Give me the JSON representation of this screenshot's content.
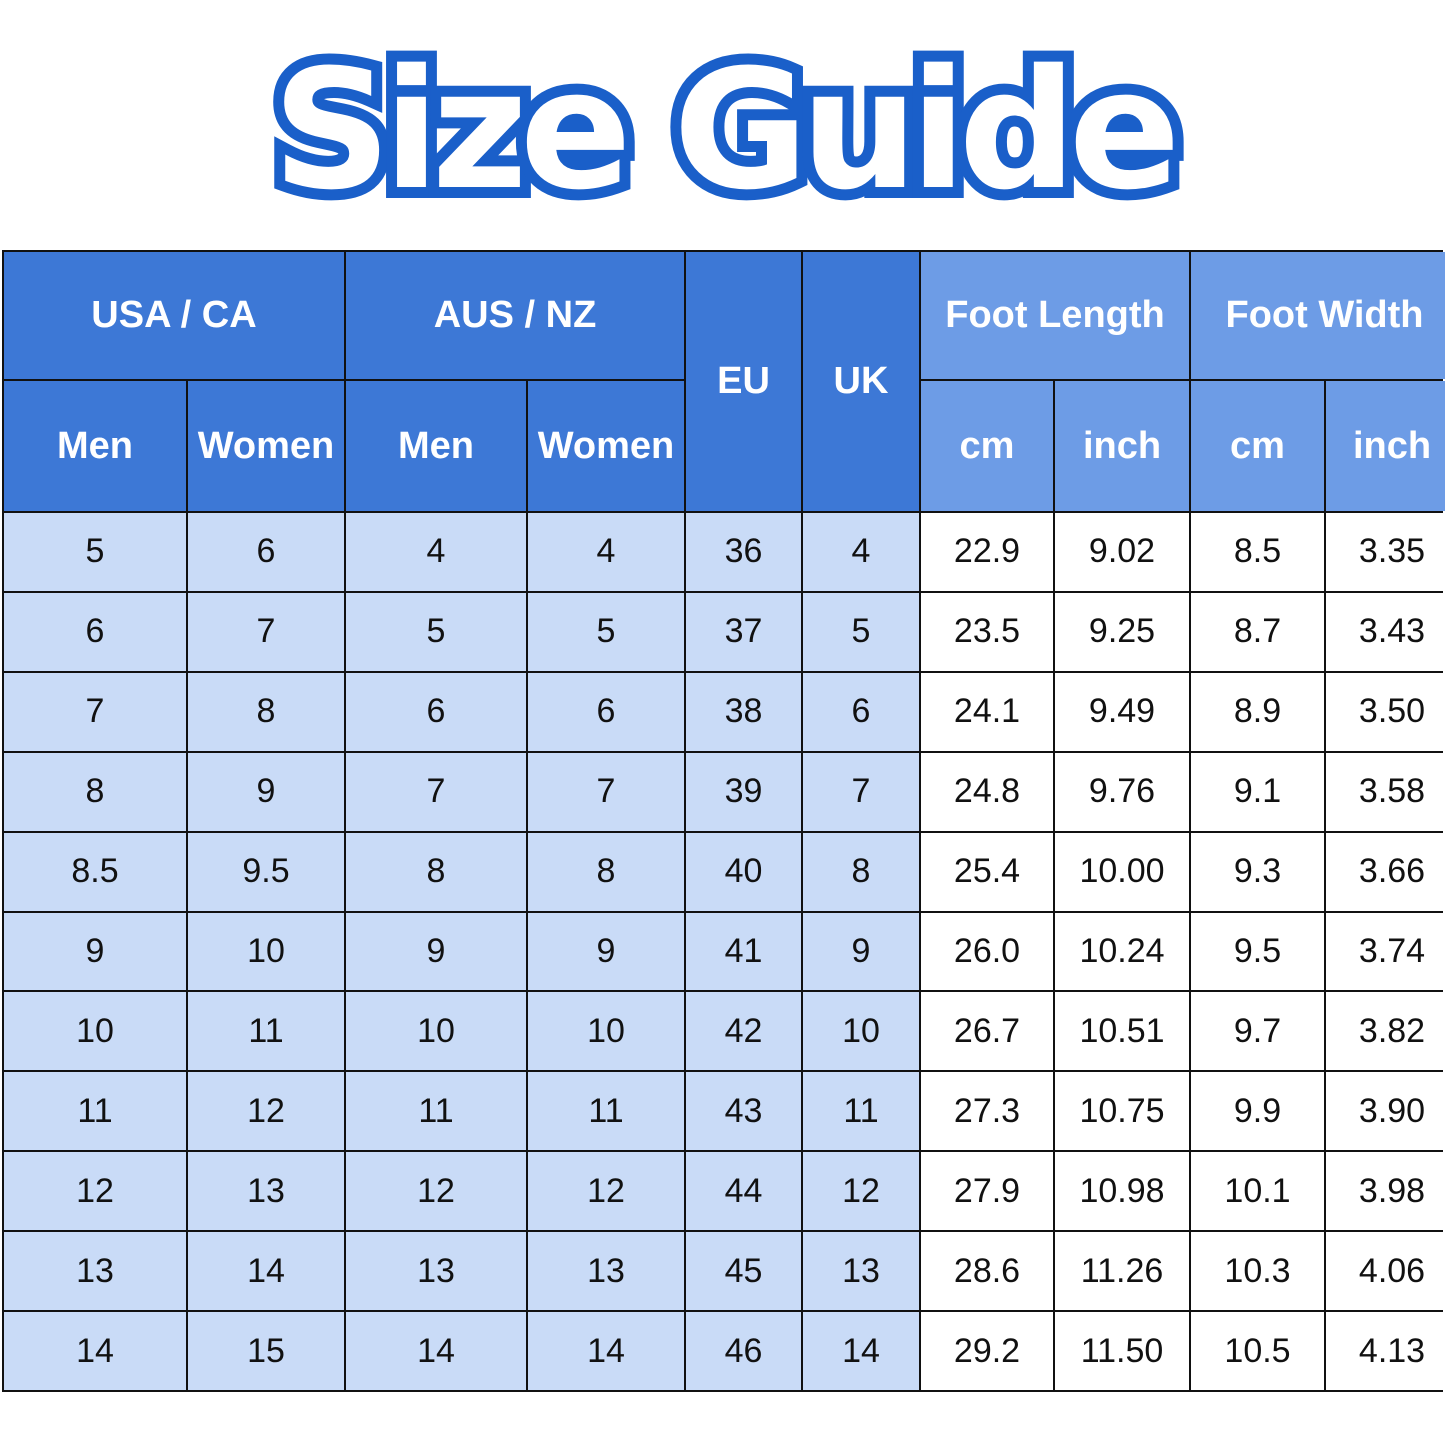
{
  "title": "Size Guide",
  "colors": {
    "header_dark": "#3d78d6",
    "header_light": "#6d9ce6",
    "body_blue": "#c9dbf7",
    "title_outline": "#1a5fc9"
  },
  "headers": {
    "usa_ca": "USA / CA",
    "aus_nz": "AUS / NZ",
    "eu": "EU",
    "uk": "UK",
    "foot_length": "Foot Length",
    "foot_width": "Foot Width",
    "sub": [
      "Men",
      "Women",
      "Men",
      "Women",
      "cm",
      "inch",
      "cm",
      "inch"
    ]
  },
  "rows": [
    [
      "5",
      "6",
      "4",
      "4",
      "36",
      "4",
      "22.9",
      "9.02",
      "8.5",
      "3.35"
    ],
    [
      "6",
      "7",
      "5",
      "5",
      "37",
      "5",
      "23.5",
      "9.25",
      "8.7",
      "3.43"
    ],
    [
      "7",
      "8",
      "6",
      "6",
      "38",
      "6",
      "24.1",
      "9.49",
      "8.9",
      "3.50"
    ],
    [
      "8",
      "9",
      "7",
      "7",
      "39",
      "7",
      "24.8",
      "9.76",
      "9.1",
      "3.58"
    ],
    [
      "8.5",
      "9.5",
      "8",
      "8",
      "40",
      "8",
      "25.4",
      "10.00",
      "9.3",
      "3.66"
    ],
    [
      "9",
      "10",
      "9",
      "9",
      "41",
      "9",
      "26.0",
      "10.24",
      "9.5",
      "3.74"
    ],
    [
      "10",
      "11",
      "10",
      "10",
      "42",
      "10",
      "26.7",
      "10.51",
      "9.7",
      "3.82"
    ],
    [
      "11",
      "12",
      "11",
      "11",
      "43",
      "11",
      "27.3",
      "10.75",
      "9.9",
      "3.90"
    ],
    [
      "12",
      "13",
      "12",
      "12",
      "44",
      "12",
      "27.9",
      "10.98",
      "10.1",
      "3.98"
    ],
    [
      "13",
      "14",
      "13",
      "13",
      "45",
      "13",
      "28.6",
      "11.26",
      "10.3",
      "4.06"
    ],
    [
      "14",
      "15",
      "14",
      "14",
      "46",
      "14",
      "29.2",
      "11.50",
      "10.5",
      "4.13"
    ]
  ]
}
